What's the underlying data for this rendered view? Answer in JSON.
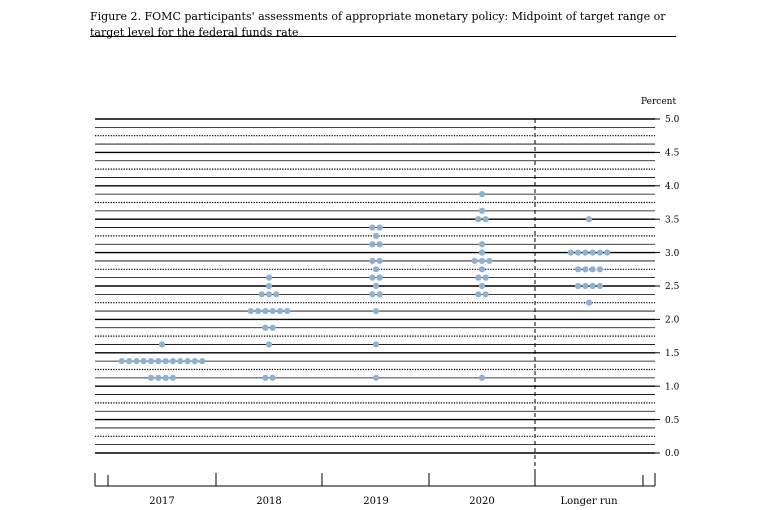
{
  "figure": {
    "title": "Figure 2. FOMC participants' assessments of appropriate monetary policy: Midpoint of target range or target level for the federal funds rate"
  },
  "chart_data": {
    "type": "scatter",
    "title": "Figure 2. FOMC participants' assessments of appropriate monetary policy: Midpoint of target range or target level for the federal funds rate",
    "ylabel": "Percent",
    "xlabel": "",
    "ylim": [
      0,
      5
    ],
    "yticks": [
      "5.0",
      "4.5",
      "4.0",
      "3.5",
      "3.0",
      "2.5",
      "2.0",
      "1.5",
      "1.0",
      "0.5",
      "0.0"
    ],
    "categories": [
      "2017",
      "2018",
      "2019",
      "2020",
      "Longer run"
    ],
    "grid": true,
    "dot_color": "#8eb0d1",
    "separator_before": "Longer run",
    "points": [
      {
        "category": "2017",
        "values": [
          {
            "y": 1.625,
            "count": 1
          },
          {
            "y": 1.375,
            "count": 12
          },
          {
            "y": 1.125,
            "count": 4
          }
        ]
      },
      {
        "category": "2018",
        "values": [
          {
            "y": 2.625,
            "count": 1
          },
          {
            "y": 2.5,
            "count": 1
          },
          {
            "y": 2.375,
            "count": 3
          },
          {
            "y": 2.125,
            "count": 6
          },
          {
            "y": 1.875,
            "count": 2
          },
          {
            "y": 1.625,
            "count": 1
          },
          {
            "y": 1.125,
            "count": 2
          }
        ]
      },
      {
        "category": "2019",
        "values": [
          {
            "y": 3.375,
            "count": 2
          },
          {
            "y": 3.25,
            "count": 1
          },
          {
            "y": 3.125,
            "count": 2
          },
          {
            "y": 2.875,
            "count": 2
          },
          {
            "y": 2.75,
            "count": 1
          },
          {
            "y": 2.625,
            "count": 2
          },
          {
            "y": 2.5,
            "count": 1
          },
          {
            "y": 2.375,
            "count": 2
          },
          {
            "y": 2.125,
            "count": 1
          },
          {
            "y": 1.625,
            "count": 1
          },
          {
            "y": 1.125,
            "count": 1
          }
        ]
      },
      {
        "category": "2020",
        "values": [
          {
            "y": 3.875,
            "count": 1
          },
          {
            "y": 3.625,
            "count": 1
          },
          {
            "y": 3.5,
            "count": 2
          },
          {
            "y": 3.125,
            "count": 1
          },
          {
            "y": 3.0,
            "count": 1
          },
          {
            "y": 2.875,
            "count": 3
          },
          {
            "y": 2.75,
            "count": 1
          },
          {
            "y": 2.625,
            "count": 2
          },
          {
            "y": 2.5,
            "count": 1
          },
          {
            "y": 2.375,
            "count": 2
          },
          {
            "y": 1.125,
            "count": 1
          }
        ]
      },
      {
        "category": "Longer run",
        "values": [
          {
            "y": 3.5,
            "count": 1
          },
          {
            "y": 3.0,
            "count": 6
          },
          {
            "y": 2.75,
            "count": 4
          },
          {
            "y": 2.5,
            "count": 4
          },
          {
            "y": 2.25,
            "count": 1
          }
        ]
      }
    ]
  }
}
